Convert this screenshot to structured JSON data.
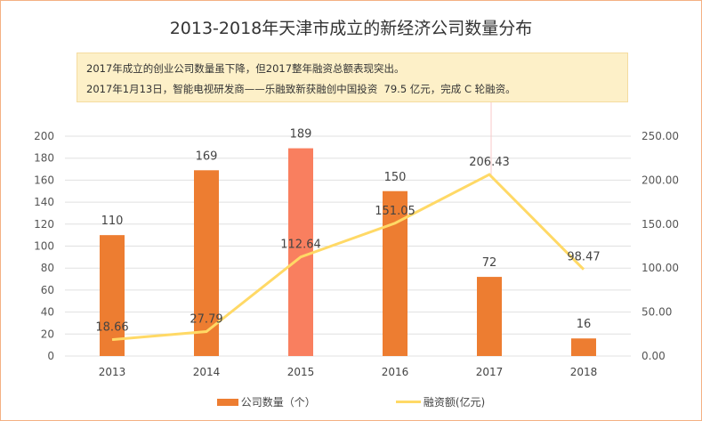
{
  "chart_data": {
    "type": "bar+line",
    "title": "2013-2018年天津市成立的新经济公司数量分布",
    "annotation": [
      "2017年成立的创业公司数量虽下降，但2017整年融资总额表现突出。",
      "2017年1月13日，智能电视研发商——乐融致新获融创中国投资  79.5 亿元，完成 C 轮融资。"
    ],
    "categories": [
      "2013",
      "2014",
      "2015",
      "2016",
      "2017",
      "2018"
    ],
    "series": [
      {
        "name": "公司数量（个）",
        "type": "bar",
        "axis": "left",
        "values": [
          110,
          169,
          189,
          150,
          72,
          16
        ],
        "labels": [
          "110",
          "169",
          "189",
          "150",
          "72",
          "16"
        ],
        "color": "#ed7d31",
        "highlight_index": 2,
        "highlight_color": "#f97f5f"
      },
      {
        "name": "融资额(亿元)",
        "type": "line",
        "axis": "right",
        "values": [
          18.66,
          27.79,
          112.64,
          151.05,
          206.43,
          98.47
        ],
        "labels": [
          "18.66",
          "27.79",
          "112.64",
          "151.05",
          "206.43",
          "98.47"
        ],
        "color": "#ffd966"
      }
    ],
    "y_left": {
      "ylim": [
        0,
        200
      ],
      "ticks": [
        "0",
        "20",
        "40",
        "60",
        "80",
        "100",
        "120",
        "140",
        "160",
        "180",
        "200"
      ]
    },
    "y_right": {
      "ylim": [
        0,
        250
      ],
      "ticks": [
        "0.00",
        "50.00",
        "100.00",
        "150.00",
        "200.00",
        "250.00"
      ]
    },
    "grid": true,
    "legend_position": "bottom"
  }
}
